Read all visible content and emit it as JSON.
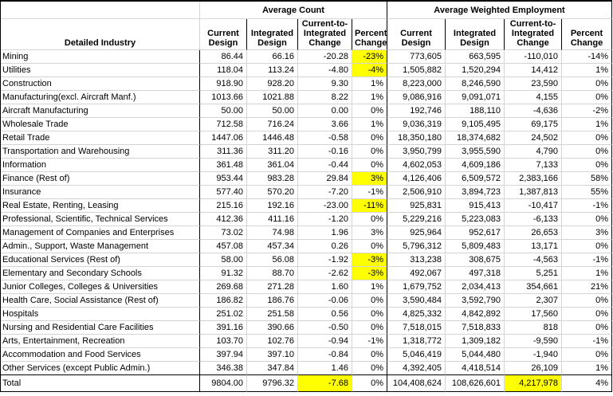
{
  "sheet": {
    "group_headers": {
      "count": "Average Count",
      "employment": "Average Weighted Employment"
    },
    "column_headers": {
      "industry": "Detailed Industry",
      "count_current": "Current Design",
      "count_integrated": "Integrated Design",
      "count_change": "Current-to-Integrated Change",
      "count_percent": "Percent Change",
      "emp_current": "Current Design",
      "emp_integrated": "Integrated Design",
      "emp_change": "Current-to-Integrated Change",
      "emp_percent": "Percent Change"
    },
    "highlight_color": "#FFFF00",
    "rows": [
      {
        "cells": [
          "Mining",
          "86.44",
          "66.16",
          "-20.28",
          "-23%",
          "773,605",
          "663,595",
          "-110,010",
          "-14%"
        ],
        "highlights": [
          4
        ]
      },
      {
        "cells": [
          "Utilities",
          "118.04",
          "113.24",
          "-4.80",
          "-4%",
          "1,505,882",
          "1,520,294",
          "14,412",
          "1%"
        ],
        "highlights": [
          4
        ]
      },
      {
        "cells": [
          "Construction",
          "918.90",
          "928.20",
          "9.30",
          "1%",
          "8,223,000",
          "8,246,590",
          "23,590",
          "0%"
        ],
        "highlights": []
      },
      {
        "cells": [
          "Manufacturing(excl. Aircraft Manf.)",
          "1013.66",
          "1021.88",
          "8.22",
          "1%",
          "9,086,916",
          "9,091,071",
          "4,155",
          "0%"
        ],
        "highlights": []
      },
      {
        "cells": [
          "Aircraft Manufacturing",
          "50.00",
          "50.00",
          "0.00",
          "0%",
          "192,746",
          "188,110",
          "-4,636",
          "-2%"
        ],
        "highlights": []
      },
      {
        "cells": [
          "Wholesale Trade",
          "712.58",
          "716.24",
          "3.66",
          "1%",
          "9,036,319",
          "9,105,495",
          "69,175",
          "1%"
        ],
        "highlights": []
      },
      {
        "cells": [
          "Retail Trade",
          "1447.06",
          "1446.48",
          "-0.58",
          "0%",
          "18,350,180",
          "18,374,682",
          "24,502",
          "0%"
        ],
        "highlights": []
      },
      {
        "cells": [
          "Transportation and Warehousing",
          "311.36",
          "311.20",
          "-0.16",
          "0%",
          "3,950,799",
          "3,955,590",
          "4,790",
          "0%"
        ],
        "highlights": []
      },
      {
        "cells": [
          "Information",
          "361.48",
          "361.04",
          "-0.44",
          "0%",
          "4,602,053",
          "4,609,186",
          "7,133",
          "0%"
        ],
        "highlights": []
      },
      {
        "cells": [
          "Finance (Rest of)",
          "953.44",
          "983.28",
          "29.84",
          "3%",
          "4,126,406",
          "6,509,572",
          "2,383,166",
          "58%"
        ],
        "highlights": [
          4
        ]
      },
      {
        "cells": [
          "Insurance",
          "577.40",
          "570.20",
          "-7.20",
          "-1%",
          "2,506,910",
          "3,894,723",
          "1,387,813",
          "55%"
        ],
        "highlights": []
      },
      {
        "cells": [
          "Real Estate, Renting, Leasing",
          "215.16",
          "192.16",
          "-23.00",
          "-11%",
          "925,831",
          "915,413",
          "-10,417",
          "-1%"
        ],
        "highlights": [
          4
        ]
      },
      {
        "cells": [
          "Professional, Scientific, Technical Services",
          "412.36",
          "411.16",
          "-1.20",
          "0%",
          "5,229,216",
          "5,223,083",
          "-6,133",
          "0%"
        ],
        "highlights": []
      },
      {
        "cells": [
          "Management of Companies and Enterprises",
          "73.02",
          "74.98",
          "1.96",
          "3%",
          "925,964",
          "952,617",
          "26,653",
          "3%"
        ],
        "highlights": []
      },
      {
        "cells": [
          "Admin., Support, Waste Management",
          "457.08",
          "457.34",
          "0.26",
          "0%",
          "5,796,312",
          "5,809,483",
          "13,171",
          "0%"
        ],
        "highlights": []
      },
      {
        "cells": [
          "Educational Services (Rest of)",
          "58.00",
          "56.08",
          "-1.92",
          "-3%",
          "313,238",
          "308,675",
          "-4,563",
          "-1%"
        ],
        "highlights": [
          4
        ]
      },
      {
        "cells": [
          "Elementary and Secondary Schools",
          "91.32",
          "88.70",
          "-2.62",
          "-3%",
          "492,067",
          "497,318",
          "5,251",
          "1%"
        ],
        "highlights": [
          4
        ]
      },
      {
        "cells": [
          "Junior Colleges, Colleges & Universities",
          "269.68",
          "271.28",
          "1.60",
          "1%",
          "1,679,752",
          "2,034,413",
          "354,661",
          "21%"
        ],
        "highlights": []
      },
      {
        "cells": [
          "Health Care, Social Assistance (Rest of)",
          "186.82",
          "186.76",
          "-0.06",
          "0%",
          "3,590,484",
          "3,592,790",
          "2,307",
          "0%"
        ],
        "highlights": []
      },
      {
        "cells": [
          "Hospitals",
          "251.02",
          "251.58",
          "0.56",
          "0%",
          "4,825,332",
          "4,842,892",
          "17,560",
          "0%"
        ],
        "highlights": []
      },
      {
        "cells": [
          "Nursing and Residential Care Facilities",
          "391.16",
          "390.66",
          "-0.50",
          "0%",
          "7,518,015",
          "7,518,833",
          "818",
          "0%"
        ],
        "highlights": []
      },
      {
        "cells": [
          "Arts, Entertainment, Recreation",
          "103.70",
          "102.76",
          "-0.94",
          "-1%",
          "1,318,772",
          "1,309,182",
          "-9,590",
          "-1%"
        ],
        "highlights": []
      },
      {
        "cells": [
          "Accommodation and Food Services",
          "397.94",
          "397.10",
          "-0.84",
          "0%",
          "5,046,419",
          "5,044,480",
          "-1,940",
          "0%"
        ],
        "highlights": []
      },
      {
        "cells": [
          "Other Services (except Public Admin.)",
          "346.38",
          "347.84",
          "1.46",
          "0%",
          "4,392,405",
          "4,418,514",
          "26,109",
          "1%"
        ],
        "highlights": []
      },
      {
        "cells": [
          "Total",
          "9804.00",
          "9796.32",
          "-7.68",
          "0%",
          "104,408,624",
          "108,626,601",
          "4,217,978",
          "4%"
        ],
        "highlights": [
          3,
          7
        ],
        "is_total": true
      }
    ]
  }
}
